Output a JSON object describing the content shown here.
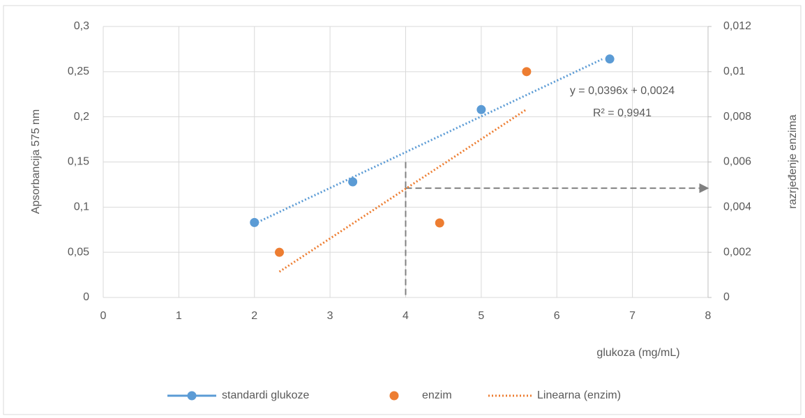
{
  "chart_data": {
    "type": "scatter",
    "xlabel": "glukoza (mg/mL)",
    "ylabel": "Apsorbancija 575 nm",
    "y2label": "razrjeđenje enzima",
    "xlim": [
      0,
      8
    ],
    "xticks": [
      0,
      1,
      2,
      3,
      4,
      5,
      6,
      7,
      8
    ],
    "ylim": [
      0,
      0.3
    ],
    "yticks": [
      0,
      {
        "value": 0.05,
        "label": "0,05"
      },
      {
        "value": 0.1,
        "label": "0,1"
      },
      {
        "value": 0.15,
        "label": "0,15"
      },
      {
        "value": 0.2,
        "label": "0,2"
      },
      {
        "value": 0.25,
        "label": "0,25"
      },
      {
        "value": 0.3,
        "label": "0,3"
      }
    ],
    "y2lim": [
      0,
      0.012
    ],
    "y2ticks": [
      0,
      {
        "value": 0.002,
        "label": "0,002"
      },
      {
        "value": 0.004,
        "label": "0,004"
      },
      {
        "value": 0.006,
        "label": "0,006"
      },
      {
        "value": 0.008,
        "label": "0,008"
      },
      {
        "value": 0.01,
        "label": "0,01"
      },
      {
        "value": 0.012,
        "label": "0,012"
      }
    ],
    "grid": true,
    "legend": "bottom",
    "series": [
      {
        "name": "standardi glukoze",
        "color": "#5b9bd5",
        "x": [
          2,
          3.3,
          5,
          6.7
        ],
        "values": [
          0.083,
          0.128,
          0.208,
          0.264
        ],
        "marker": true,
        "legend_style": "line-marker"
      },
      {
        "name": "enzim",
        "color": "#ed7d31",
        "x": [
          2.33,
          4.45,
          5.6
        ],
        "values": [
          0.002,
          0.0033,
          0.01
        ],
        "axis": "y2",
        "marker": true
      },
      {
        "name": "Linearna (enzim)",
        "color": "#ed7d31",
        "x": [
          2.33,
          5.6
        ],
        "values": [
          0.00114,
          0.00833
        ],
        "axis": "y2",
        "line_style": "dotted"
      },
      {
        "color": "#5b9bd5",
        "x": [
          2,
          6.6
        ],
        "values": [
          0.0816,
          0.2638
        ],
        "line_style": "dotted"
      }
    ],
    "guides": [
      {
        "color": "#808080",
        "x": [
          4,
          4
        ],
        "values": [
          0.15,
          0
        ]
      },
      {
        "color": "#808080",
        "x": [
          4,
          8
        ],
        "values": [
          0.00484,
          0.00484
        ],
        "axis": "y2",
        "arrow": true
      }
    ],
    "annotations": [
      "y = 0,0396x + 0,0024",
      "R² = 0,9941"
    ]
  }
}
